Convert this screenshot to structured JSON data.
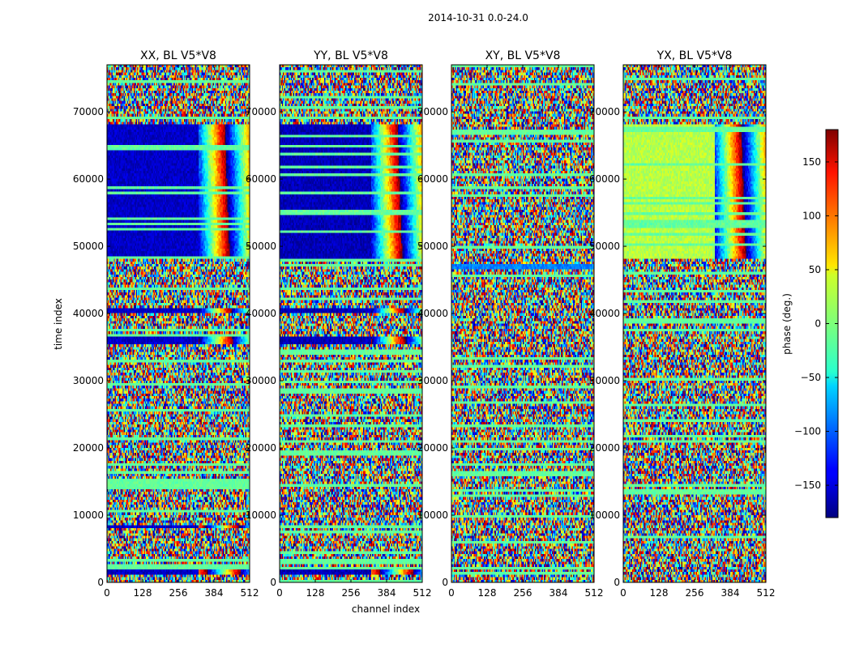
{
  "chart_data": {
    "type": "heatmap",
    "suptitle": "2014-10-31 0.0-24.0",
    "xlabel": "channel index",
    "ylabel": "time index",
    "xlim": [
      0,
      512
    ],
    "ylim": [
      0,
      77000
    ],
    "x_ticks": [
      "0",
      "128",
      "256",
      "384",
      "512"
    ],
    "y_ticks": [
      "0",
      "10000",
      "20000",
      "30000",
      "40000",
      "50000",
      "60000",
      "70000"
    ],
    "y_tick_values": [
      0,
      10000,
      20000,
      30000,
      40000,
      50000,
      60000,
      70000
    ],
    "x_tick_values": [
      0,
      128,
      256,
      384,
      512
    ],
    "panels": [
      {
        "title": "XX, BL V5*V8",
        "polarization": "XX",
        "coherent_phase": -155,
        "coherent_bands": [
          [
            48000,
            68000
          ],
          [
            40000,
            41000
          ],
          [
            35500,
            36500
          ],
          [
            8000,
            8500
          ],
          [
            1000,
            2000
          ]
        ],
        "coherent_channel_end": 330
      },
      {
        "title": "YY, BL V5*V8",
        "polarization": "YY",
        "coherent_phase": -160,
        "coherent_bands": [
          [
            48000,
            68000
          ],
          [
            40000,
            41000
          ],
          [
            35500,
            36500
          ],
          [
            8000,
            8500
          ],
          [
            1000,
            2000
          ]
        ],
        "coherent_channel_end": 330
      },
      {
        "title": "XY, BL V5*V8",
        "polarization": "XY",
        "coherent_phase": -90,
        "coherent_bands": [
          [
            46500,
            47500
          ]
        ],
        "coherent_channel_end": 512
      },
      {
        "title": "YX, BL V5*V8",
        "polarization": "YX",
        "coherent_phase": 20,
        "coherent_bands": [
          [
            48000,
            68000
          ]
        ],
        "coherent_channel_end": 330
      }
    ],
    "colorbar": {
      "label": "phase (deg.)",
      "colormap": "jet",
      "range": [
        -180,
        180
      ],
      "ticks": [
        "−150",
        "−100",
        "−50",
        "0",
        "50",
        "100",
        "150"
      ],
      "tick_values": [
        -150,
        -100,
        -50,
        0,
        50,
        100,
        150
      ]
    },
    "grid": false
  }
}
